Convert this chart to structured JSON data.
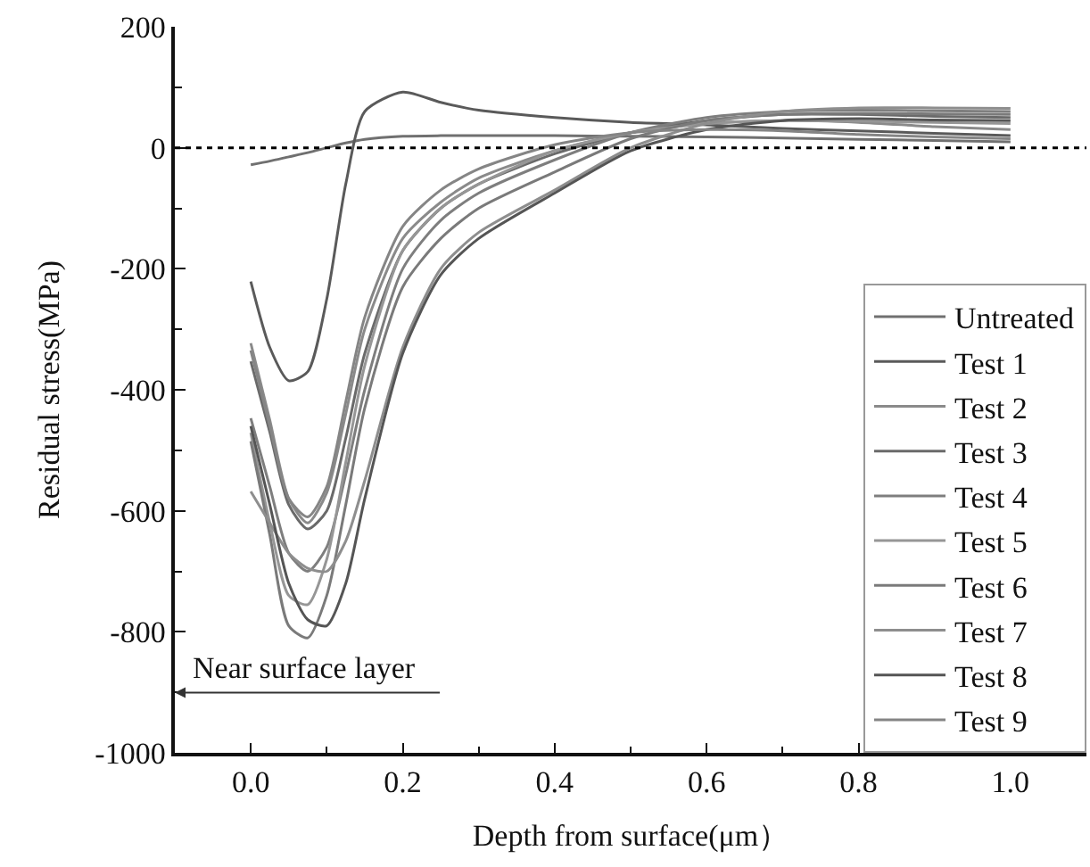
{
  "chart_data": {
    "type": "line",
    "xlabel": "Depth from surface(μm）",
    "ylabel": "Residual stress(MPa)",
    "x": [
      0,
      0.025,
      0.05,
      0.075,
      0.1,
      0.125,
      0.15,
      0.2,
      0.25,
      0.3,
      0.4,
      0.5,
      0.6,
      0.7,
      0.8,
      0.9,
      1.0
    ],
    "series": [
      {
        "name": "Untreated",
        "color": "#707070",
        "values": [
          -28,
          -22,
          -15,
          -8,
          0,
          8,
          14,
          19,
          20,
          20,
          20,
          19,
          18,
          16,
          14,
          12,
          10
        ]
      },
      {
        "name": "Test 1",
        "color": "#5a5a5a",
        "values": [
          -221,
          -330,
          -385,
          -370,
          -250,
          -60,
          60,
          92,
          75,
          62,
          50,
          42,
          38,
          32,
          28,
          24,
          20
        ]
      },
      {
        "name": "Test 2",
        "color": "#8a8a8a",
        "values": [
          -323,
          -450,
          -580,
          -620,
          -570,
          -440,
          -300,
          -150,
          -90,
          -50,
          -5,
          25,
          40,
          45,
          42,
          35,
          30
        ]
      },
      {
        "name": "Test 3",
        "color": "#6a6a6a",
        "values": [
          -353,
          -470,
          -590,
          -630,
          -600,
          -480,
          -340,
          -170,
          -100,
          -60,
          -10,
          25,
          45,
          55,
          55,
          52,
          50
        ]
      },
      {
        "name": "Test 4",
        "color": "#7e7e7e",
        "values": [
          -447,
          -560,
          -670,
          -700,
          -660,
          -540,
          -400,
          -200,
          -120,
          -75,
          -20,
          25,
          50,
          60,
          62,
          61,
          60
        ]
      },
      {
        "name": "Test 5",
        "color": "#969696",
        "values": [
          -471,
          -620,
          -740,
          -755,
          -680,
          -520,
          -360,
          -170,
          -100,
          -60,
          -5,
          25,
          40,
          45,
          44,
          42,
          40
        ]
      },
      {
        "name": "Test 6",
        "color": "#7a7a7a",
        "values": [
          -485,
          -640,
          -790,
          -810,
          -740,
          -590,
          -430,
          -230,
          -150,
          -100,
          -40,
          15,
          45,
          55,
          57,
          56,
          55
        ]
      },
      {
        "name": "Test 7",
        "color": "#8e8e8e",
        "values": [
          -568,
          -620,
          -670,
          -695,
          -700,
          -650,
          -550,
          -330,
          -200,
          -140,
          -70,
          0,
          40,
          60,
          66,
          66,
          65
        ]
      },
      {
        "name": "Test 8",
        "color": "#555555",
        "values": [
          -460,
          -590,
          -720,
          -780,
          -790,
          -720,
          -580,
          -340,
          -210,
          -150,
          -75,
          -5,
          30,
          45,
          48,
          46,
          45
        ]
      },
      {
        "name": "Test 9",
        "color": "#858585",
        "values": [
          -335,
          -460,
          -580,
          -610,
          -560,
          -420,
          -280,
          -130,
          -70,
          -35,
          5,
          25,
          30,
          28,
          22,
          18,
          15
        ]
      }
    ],
    "xlim": [
      -0.1,
      1.1
    ],
    "xticks": [
      {
        "value": 0,
        "label": "0.0"
      },
      {
        "value": 0.2,
        "label": "0.2"
      },
      {
        "value": 0.4,
        "label": "0.4"
      },
      {
        "value": 0.6,
        "label": "0.6"
      },
      {
        "value": 0.8,
        "label": "0.8"
      },
      {
        "value": 1.0,
        "label": "1.0"
      }
    ],
    "ylim": [
      -1000,
      200
    ],
    "yticks": [
      -1000,
      -800,
      -600,
      -400,
      -200,
      0,
      200
    ],
    "ref_lines": [
      {
        "axis": "y",
        "value": 0,
        "color": "#000000",
        "line_style": "dotted"
      }
    ],
    "annotations": [
      "Near surface layer"
    ],
    "legend": "bottom right",
    "marker": "none",
    "line_style": "solid"
  }
}
